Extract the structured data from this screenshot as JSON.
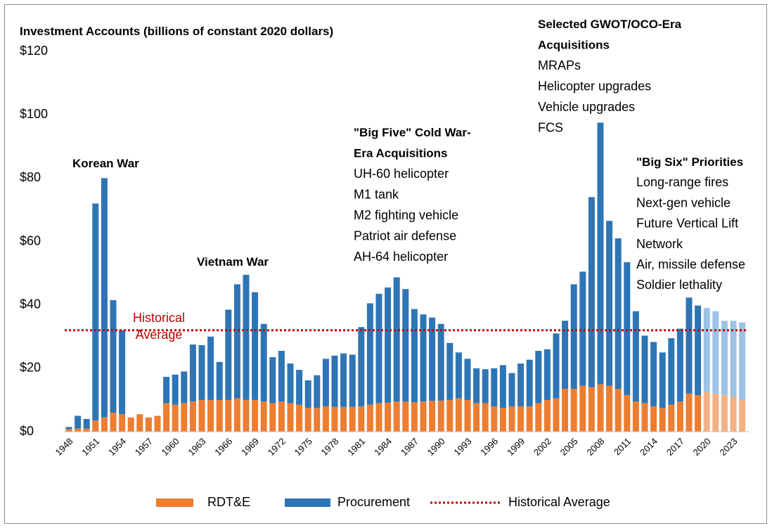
{
  "chart_data": {
    "type": "stacked_bar",
    "title": "Investment Accounts (billions of constant 2020 dollars)",
    "categories": [
      "1948",
      null,
      null,
      "1951",
      null,
      null,
      "1954",
      null,
      null,
      "1957",
      null,
      null,
      "1960",
      null,
      null,
      "1963",
      null,
      null,
      "1966",
      null,
      null,
      "1969",
      null,
      null,
      "1972",
      null,
      null,
      "1975",
      null,
      null,
      "1978",
      null,
      null,
      "1981",
      null,
      null,
      "1984",
      null,
      null,
      "1987",
      null,
      null,
      "1990",
      null,
      null,
      "1993",
      null,
      null,
      "1996",
      null,
      null,
      "1999",
      null,
      null,
      "2002",
      null,
      null,
      "2005",
      null,
      null,
      "2008",
      null,
      null,
      "2011",
      null,
      null,
      "2014",
      null,
      null,
      "2017",
      null,
      null,
      "2020",
      null,
      null,
      "2023",
      null
    ],
    "series": [
      {
        "name": "RDT&E",
        "color": "#ED7D31",
        "colors": [
          "#ED7D31",
          "#ED7D31",
          "#ED7D31",
          "#ED7D31",
          "#ED7D31",
          "#ED7D31",
          "#ED7D31",
          "#ED7D31",
          "#ED7D31",
          "#ED7D31",
          "#ED7D31",
          "#ED7D31",
          "#ED7D31",
          "#ED7D31",
          "#ED7D31",
          "#ED7D31",
          "#ED7D31",
          "#ED7D31",
          "#ED7D31",
          "#ED7D31",
          "#ED7D31",
          "#ED7D31",
          "#ED7D31",
          "#ED7D31",
          "#ED7D31",
          "#ED7D31",
          "#ED7D31",
          "#ED7D31",
          "#ED7D31",
          "#ED7D31",
          "#ED7D31",
          "#ED7D31",
          "#ED7D31",
          "#ED7D31",
          "#ED7D31",
          "#ED7D31",
          "#ED7D31",
          "#ED7D31",
          "#ED7D31",
          "#ED7D31",
          "#ED7D31",
          "#ED7D31",
          "#ED7D31",
          "#ED7D31",
          "#ED7D31",
          "#ED7D31",
          "#ED7D31",
          "#ED7D31",
          "#ED7D31",
          "#ED7D31",
          "#ED7D31",
          "#ED7D31",
          "#ED7D31",
          "#ED7D31",
          "#ED7D31",
          "#ED7D31",
          "#ED7D31",
          "#ED7D31",
          "#ED7D31",
          "#ED7D31",
          "#ED7D31",
          "#ED7D31",
          "#ED7D31",
          "#ED7D31",
          "#ED7D31",
          "#ED7D31",
          "#ED7D31",
          "#ED7D31",
          "#ED7D31",
          "#ED7D31",
          "#ED7D31",
          "#ED7D31",
          "#F4B183",
          "#F4B183",
          "#F4B183",
          "#F4B183",
          "#F4B183"
        ],
        "values": [
          0.8,
          1,
          1,
          3.5,
          4.5,
          6,
          5.5,
          4.5,
          5.5,
          4.5,
          5,
          9,
          8.5,
          9,
          9.5,
          10,
          10,
          10,
          10,
          10.5,
          10,
          10,
          9.5,
          9,
          9.5,
          9,
          8.5,
          7.5,
          7.5,
          8,
          7.8,
          7.8,
          7.8,
          8,
          8.5,
          9,
          9.2,
          9.5,
          9.5,
          9.3,
          9.5,
          9.7,
          9.8,
          10,
          10.5,
          10,
          9,
          9,
          8,
          7.5,
          8,
          8,
          8,
          9,
          10,
          10.5,
          13.5,
          13.5,
          14.5,
          14,
          15,
          14.5,
          13.5,
          11.5,
          9.5,
          9,
          8,
          7.5,
          8.5,
          9.5,
          12,
          11.5,
          12.5,
          12,
          11.5,
          11,
          10
        ]
      },
      {
        "name": "Procurement",
        "color": "#2E75B6",
        "colors": [
          "#2E75B6",
          "#2E75B6",
          "#2E75B6",
          "#2E75B6",
          "#2E75B6",
          "#2E75B6",
          "#2E75B6",
          "#2E75B6",
          "#2E75B6",
          "#2E75B6",
          "#2E75B6",
          "#2E75B6",
          "#2E75B6",
          "#2E75B6",
          "#2E75B6",
          "#2E75B6",
          "#2E75B6",
          "#2E75B6",
          "#2E75B6",
          "#2E75B6",
          "#2E75B6",
          "#2E75B6",
          "#2E75B6",
          "#2E75B6",
          "#2E75B6",
          "#2E75B6",
          "#2E75B6",
          "#2E75B6",
          "#2E75B6",
          "#2E75B6",
          "#2E75B6",
          "#2E75B6",
          "#2E75B6",
          "#2E75B6",
          "#2E75B6",
          "#2E75B6",
          "#2E75B6",
          "#2E75B6",
          "#2E75B6",
          "#2E75B6",
          "#2E75B6",
          "#2E75B6",
          "#2E75B6",
          "#2E75B6",
          "#2E75B6",
          "#2E75B6",
          "#2E75B6",
          "#2E75B6",
          "#2E75B6",
          "#2E75B6",
          "#2E75B6",
          "#2E75B6",
          "#2E75B6",
          "#2E75B6",
          "#2E75B6",
          "#2E75B6",
          "#2E75B6",
          "#2E75B6",
          "#2E75B6",
          "#2E75B6",
          "#2E75B6",
          "#2E75B6",
          "#2E75B6",
          "#2E75B6",
          "#2E75B6",
          "#2E75B6",
          "#2E75B6",
          "#2E75B6",
          "#2E75B6",
          "#2E75B6",
          "#2E75B6",
          "#2E75B6",
          "#9DC3E6",
          "#9DC3E6",
          "#9DC3E6",
          "#9DC3E6",
          "#9DC3E6"
        ],
        "values": [
          0.7,
          4,
          3,
          68.5,
          75.5,
          35.5,
          26.5,
          0,
          0,
          0,
          0,
          8.3,
          9.5,
          10,
          18,
          17.3,
          20,
          12,
          28.5,
          36,
          39.5,
          34,
          24.5,
          14.5,
          16,
          12.5,
          11,
          8.7,
          10.3,
          15,
          16.2,
          16.9,
          16.5,
          25,
          32,
          34.5,
          36.3,
          39.2,
          35.5,
          29.4,
          27.5,
          26.3,
          24.2,
          18,
          14.5,
          13,
          11,
          10.7,
          12,
          13.5,
          10.5,
          13.5,
          14.7,
          16.5,
          16,
          20.5,
          21.5,
          33,
          36,
          60,
          82.5,
          52,
          47.5,
          42,
          28.5,
          21.3,
          20.3,
          17.5,
          21,
          23,
          30.3,
          28.3,
          26.5,
          26,
          23.5,
          24,
          24.5
        ]
      }
    ],
    "reference_line": {
      "name": "Historical Average",
      "value": 32,
      "color": "#C00000",
      "style": "dotted",
      "label_lines": [
        "Historical",
        "Average"
      ]
    },
    "ylim": [
      0,
      120
    ],
    "yticks": [
      {
        "value": 0,
        "label": "$0"
      },
      {
        "value": 20,
        "label": "$20"
      },
      {
        "value": 40,
        "label": "$40"
      },
      {
        "value": 60,
        "label": "$60"
      },
      {
        "value": 80,
        "label": "$80"
      },
      {
        "value": 100,
        "label": "$100"
      },
      {
        "value": 120,
        "label": "$120"
      }
    ],
    "grid": false,
    "legend": "bottom",
    "annotations": [
      {
        "title_lines": [
          "Korean War"
        ],
        "items": []
      },
      {
        "title_lines": [
          "Vietnam War"
        ],
        "items": []
      },
      {
        "title_lines": [
          "\"Big Five\" Cold War-",
          "Era Acquisitions"
        ],
        "items": [
          "UH-60 helicopter",
          "M1 tank",
          "M2 fighting vehicle",
          "Patriot air defense",
          "AH-64 helicopter"
        ]
      },
      {
        "title_lines": [
          "Selected GWOT/OCO-Era",
          "Acquisitions"
        ],
        "items": [
          "MRAPs",
          "Helicopter upgrades",
          "Vehicle upgrades",
          "FCS"
        ]
      },
      {
        "title_lines": [
          "\"Big Six\" Priorities"
        ],
        "items": [
          "Long-range fires",
          "Next-gen vehicle",
          "Future Vertical Lift",
          "Network",
          "Air, missile defense",
          "Soldier lethality"
        ]
      }
    ]
  }
}
